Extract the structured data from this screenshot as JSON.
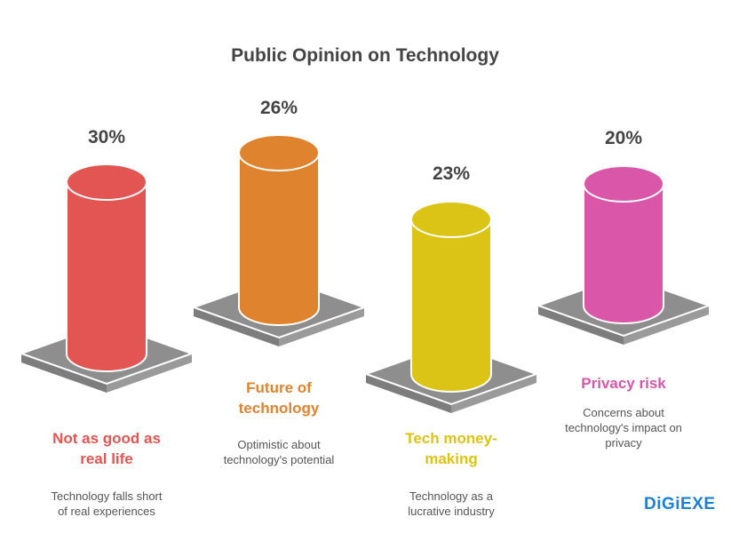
{
  "chart_data": {
    "type": "bar",
    "style": "3d-cylinder",
    "title": "Public Opinion on Technology",
    "categories": [
      "Not as good as real life",
      "Future of technology",
      "Tech money-making",
      "Privacy risk"
    ],
    "values": [
      30,
      26,
      23,
      20
    ],
    "value_labels": [
      "30%",
      "26%",
      "23%",
      "20%"
    ],
    "descriptions": [
      [
        "Technology falls short",
        "of real experiences"
      ],
      [
        "Optimistic about",
        "technology's potential"
      ],
      [
        "Technology as a",
        "lucrative industry"
      ],
      [
        "Concerns about",
        "technology's impact on",
        "privacy"
      ]
    ],
    "category_lines": [
      [
        "Not as good as",
        "real life"
      ],
      [
        "Future of",
        "technology"
      ],
      [
        "Tech money-",
        "making"
      ],
      [
        "Privacy risk"
      ]
    ],
    "colors": [
      "#E35552",
      "#E0832F",
      "#DCC416",
      "#DA56A8"
    ],
    "base_color": "#8E8E8E"
  },
  "logo": "DiGiEXE"
}
